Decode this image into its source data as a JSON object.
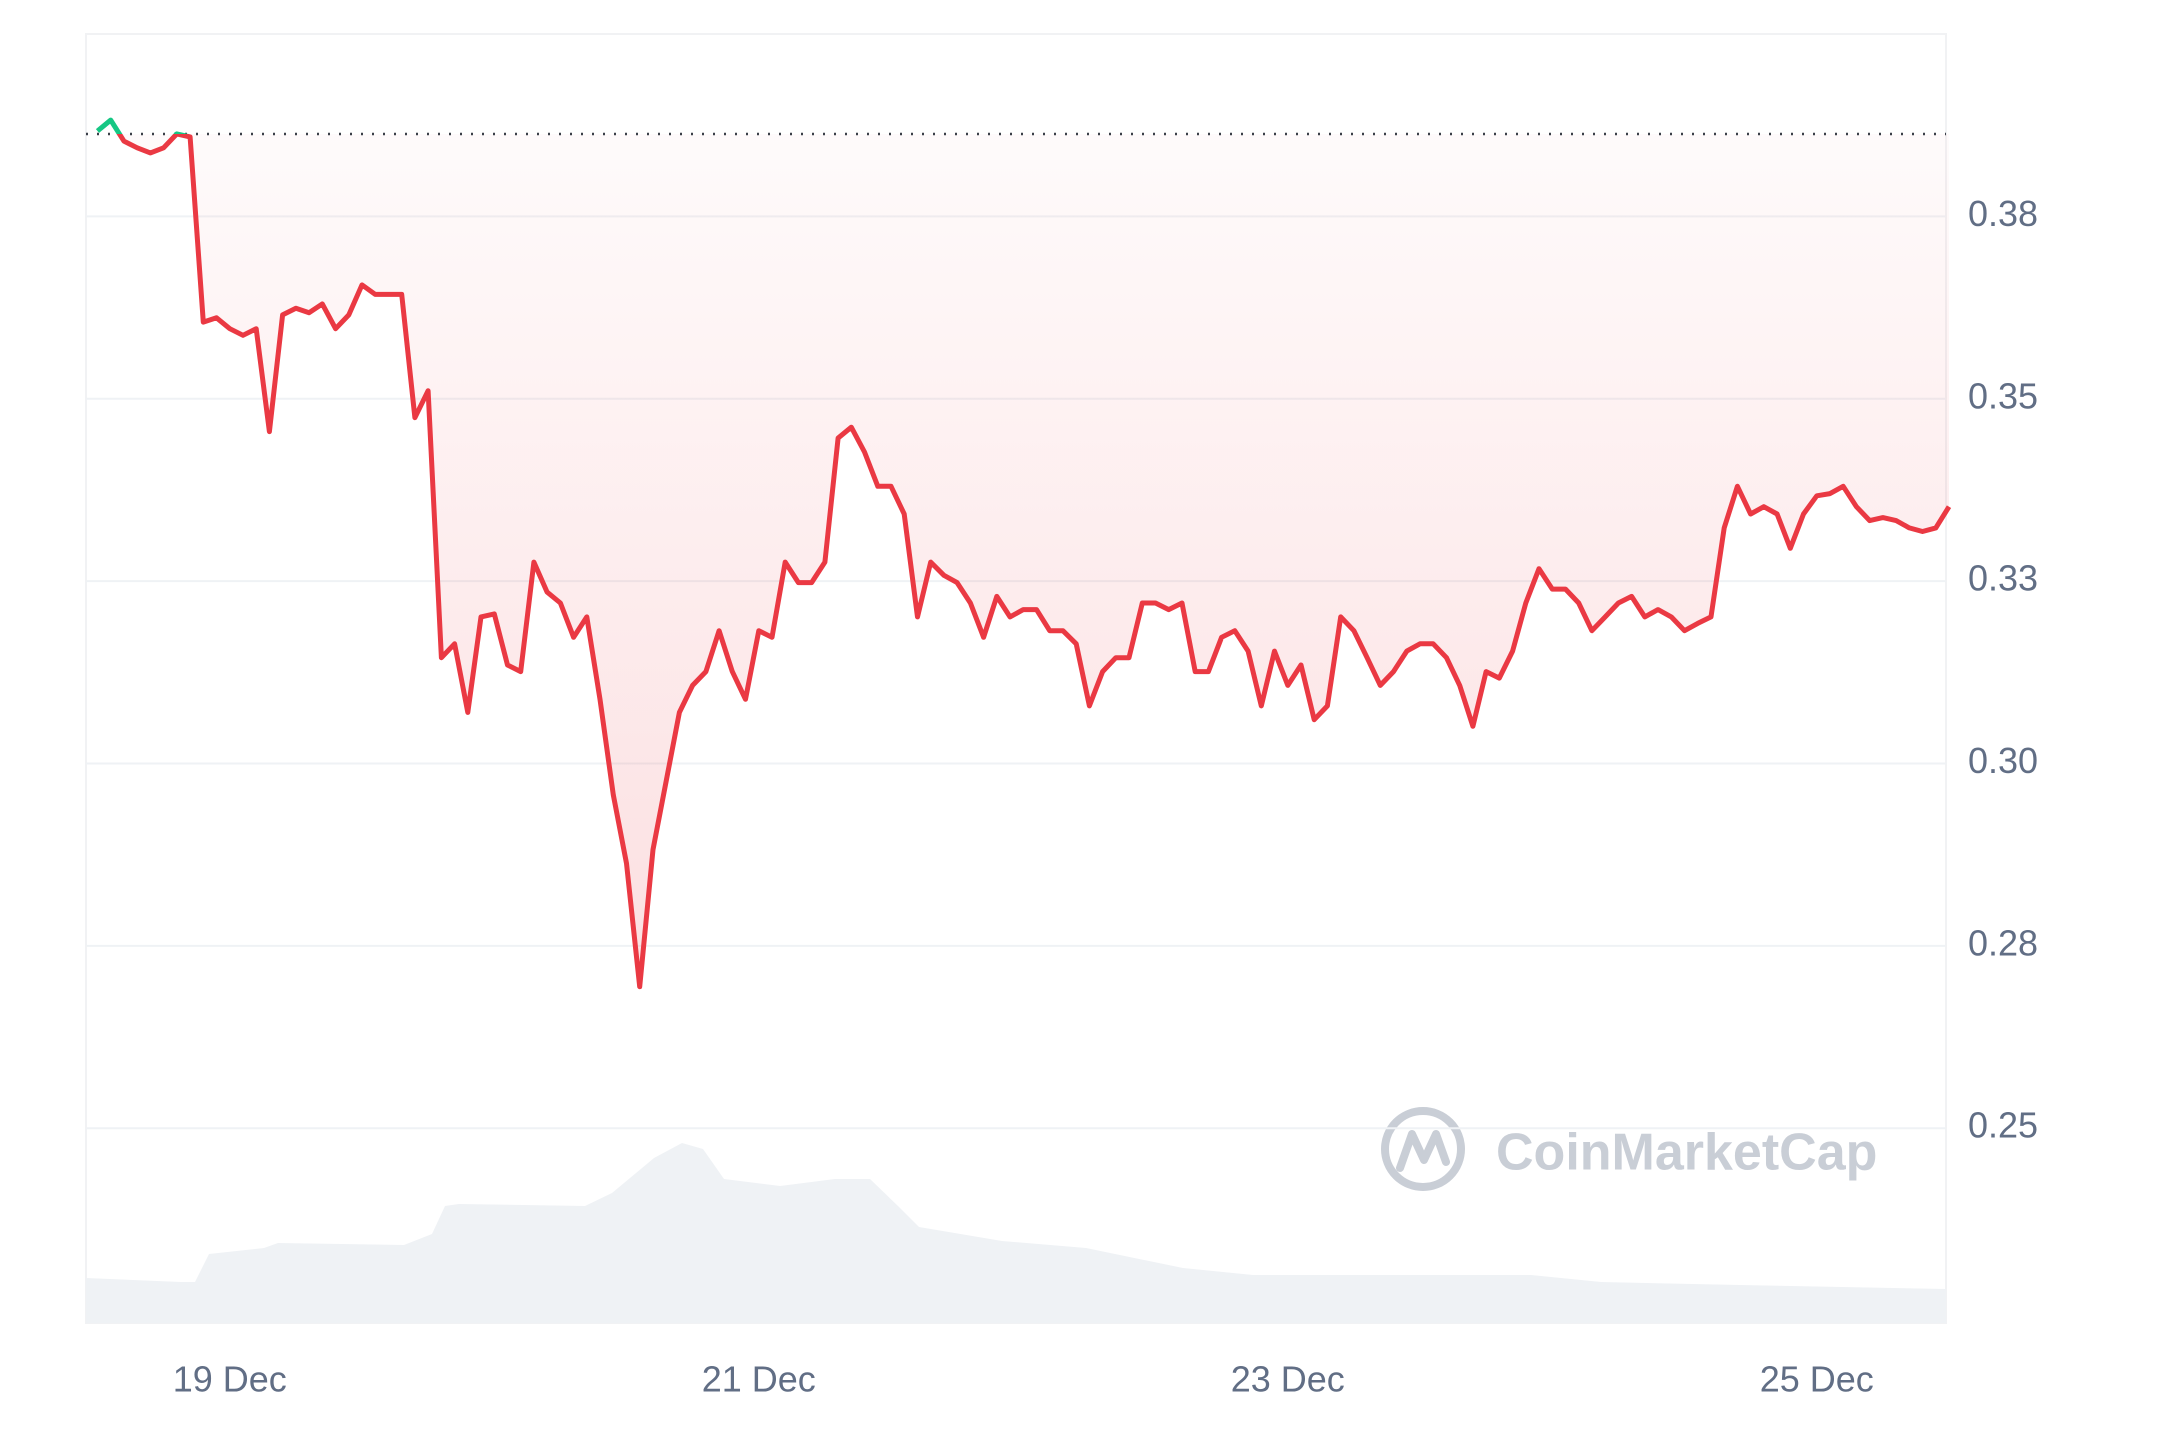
{
  "chart_data": {
    "type": "line",
    "watermark": "CoinMarketCap",
    "categories": [
      null,
      null,
      null,
      null,
      null,
      null,
      null,
      null,
      null,
      null,
      "19 Dec",
      null,
      null,
      null,
      null,
      null,
      null,
      null,
      null,
      null,
      null,
      null,
      null,
      null,
      null,
      null,
      null,
      null,
      null,
      null,
      null,
      null,
      null,
      null,
      null,
      null,
      null,
      null,
      null,
      null,
      null,
      null,
      null,
      null,
      null,
      null,
      null,
      null,
      null,
      null,
      "21 Dec",
      null,
      null,
      null,
      null,
      null,
      null,
      null,
      null,
      null,
      null,
      null,
      null,
      null,
      null,
      null,
      null,
      null,
      null,
      null,
      null,
      null,
      null,
      null,
      null,
      null,
      null,
      null,
      null,
      null,
      null,
      null,
      null,
      null,
      null,
      null,
      null,
      null,
      null,
      null,
      "23 Dec",
      null,
      null,
      null,
      null,
      null,
      null,
      null,
      null,
      null,
      null,
      null,
      null,
      null,
      null,
      null,
      null,
      null,
      null,
      null,
      null,
      null,
      null,
      null,
      null,
      null,
      null,
      null,
      null,
      null,
      null,
      null,
      null,
      null,
      null,
      null,
      null,
      null,
      null,
      null,
      "25 Dec",
      null,
      null,
      null,
      null,
      null,
      null,
      null,
      null,
      null,
      null
    ],
    "values": [
      0.3867,
      0.3882,
      0.3853,
      0.3844,
      0.3837,
      0.3844,
      0.3863,
      0.3859,
      0.3605,
      0.3611,
      0.3596,
      0.3587,
      0.3596,
      0.3455,
      0.3615,
      0.3624,
      0.3618,
      0.363,
      0.3596,
      0.3615,
      0.3656,
      0.3643,
      0.3643,
      0.3643,
      0.3474,
      0.3511,
      0.3145,
      0.3164,
      0.307,
      0.3201,
      0.3205,
      0.3135,
      0.3126,
      0.3276,
      0.3235,
      0.322,
      0.3173,
      0.3201,
      0.3088,
      0.2957,
      0.2863,
      0.2694,
      0.2882,
      0.2976,
      0.307,
      0.3107,
      0.3126,
      0.3182,
      0.3126,
      0.3088,
      0.3182,
      0.3173,
      0.3276,
      0.3248,
      0.3248,
      0.3276,
      0.3446,
      0.3461,
      0.3427,
      0.338,
      0.338,
      0.3342,
      0.3201,
      0.3276,
      0.3258,
      0.3248,
      0.322,
      0.3173,
      0.3229,
      0.3201,
      0.3211,
      0.3211,
      0.3182,
      0.3182,
      0.3164,
      0.3079,
      0.3126,
      0.3145,
      0.3145,
      0.322,
      0.322,
      0.3211,
      0.322,
      0.3126,
      0.3126,
      0.3173,
      0.3182,
      0.3154,
      0.3079,
      0.3154,
      0.3107,
      0.3135,
      0.306,
      0.3079,
      0.3201,
      0.3182,
      0.3145,
      0.3107,
      0.3126,
      0.3154,
      0.3164,
      0.3164,
      0.3145,
      0.3107,
      0.3051,
      0.3126,
      0.3117,
      0.3154,
      0.322,
      0.3267,
      0.3239,
      0.3239,
      0.322,
      0.3182,
      0.3201,
      0.322,
      0.3229,
      0.3201,
      0.3211,
      0.3201,
      0.3182,
      0.3192,
      0.3201,
      0.3323,
      0.338,
      0.3342,
      0.3352,
      0.3342,
      0.3295,
      0.3342,
      0.3367,
      0.337,
      0.338,
      0.3352,
      0.3333,
      0.3337,
      0.3333,
      0.3323,
      0.3318,
      0.3323,
      0.3352
    ],
    "baseline": 0.3863,
    "color": "#ea3943",
    "color_above": "#16c784",
    "ylim": [
      0.2233,
      0.4
    ],
    "yticks": [
      {
        "value": 0.25,
        "label": "0.25"
      },
      {
        "value": 0.275,
        "label": "0.28"
      },
      {
        "value": 0.3,
        "label": "0.30"
      },
      {
        "value": 0.325,
        "label": "0.33"
      },
      {
        "value": 0.35,
        "label": "0.35"
      },
      {
        "value": 0.375,
        "label": "0.38"
      }
    ],
    "grid": true
  }
}
